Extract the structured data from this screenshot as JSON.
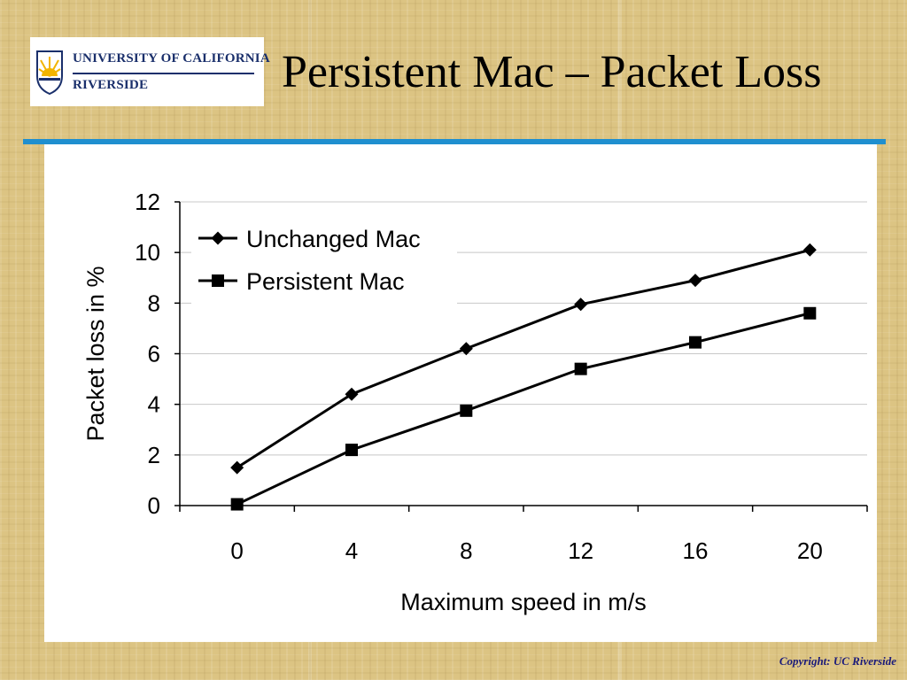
{
  "slide": {
    "title": "Persistent Mac – Packet Loss",
    "copyright": "Copyright: UC Riverside"
  },
  "logo": {
    "line1": "UNIVERSITY OF CALIFORNIA",
    "line2": "RIVERSIDE",
    "icon": "uc-seal-icon",
    "colors": {
      "navy": "#1a2f6b",
      "gold": "#f2b400"
    }
  },
  "colors": {
    "accent_rule": "#1f8fcf",
    "series_line": "#000000"
  },
  "chart_data": {
    "type": "line",
    "xlabel": "Maximum speed in m/s",
    "ylabel": "Packet loss in %",
    "x": [
      0,
      4,
      8,
      12,
      16,
      20
    ],
    "x_tick_labels": [
      "0",
      "4",
      "8",
      "12",
      "16",
      "20"
    ],
    "y_ticks": [
      0,
      2,
      4,
      6,
      8,
      10,
      12
    ],
    "y_tick_labels": [
      "0",
      "2",
      "4",
      "6",
      "8",
      "10",
      "12"
    ],
    "ylim": [
      0,
      12
    ],
    "grid": "horizontal",
    "legend_position": "top-left",
    "series": [
      {
        "name": "Unchanged Mac",
        "marker": "diamond",
        "values": [
          1.5,
          4.4,
          6.2,
          7.95,
          8.9,
          10.1
        ]
      },
      {
        "name": "Persistent Mac",
        "marker": "square",
        "values": [
          0.05,
          2.2,
          3.75,
          5.4,
          6.45,
          7.6
        ]
      }
    ]
  }
}
